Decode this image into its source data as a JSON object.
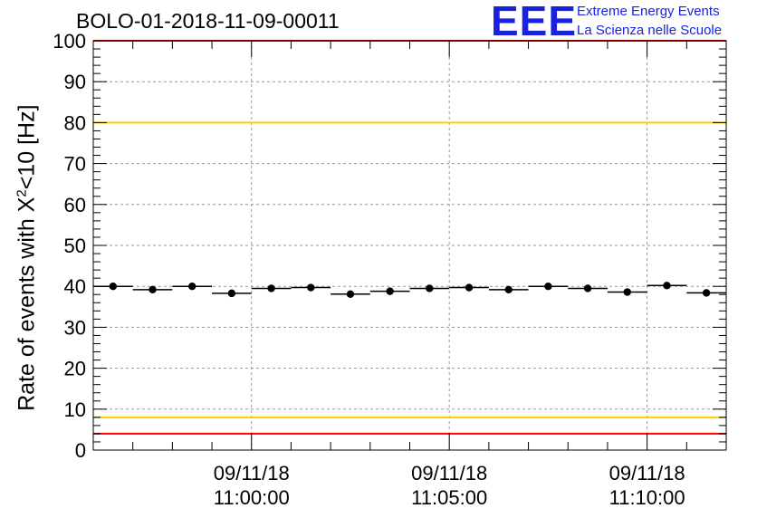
{
  "header": {
    "run_title": "BOLO-01-2018-11-09-00011"
  },
  "logo": {
    "mark": "EEE",
    "line1": "Extreme Energy Events",
    "line2": "La Scienza nelle Scuole",
    "color": "#1a22e0"
  },
  "chart_data": {
    "type": "scatter",
    "title": "BOLO-01-2018-11-09-00011",
    "xlabel": "",
    "ylabel_prefix": "Rate of events with X",
    "ylabel_sup": "2",
    "ylabel_suffix": "<10 [Hz]",
    "ylim": [
      0,
      100
    ],
    "yticks": [
      0,
      10,
      20,
      30,
      40,
      50,
      60,
      70,
      80,
      90,
      100
    ],
    "xlim": [
      "10:56:00",
      "11:12:00"
    ],
    "grid": true,
    "xticks": [
      {
        "x": "11:00:00",
        "date": "09/11/18",
        "time": "11:00:00"
      },
      {
        "x": "11:05:00",
        "date": "09/11/18",
        "time": "11:05:00"
      },
      {
        "x": "11:10:00",
        "date": "09/11/18",
        "time": "11:10:00"
      }
    ],
    "points": [
      {
        "x": "10:56:30",
        "y": 40
      },
      {
        "x": "10:57:30",
        "y": 39.2
      },
      {
        "x": "10:58:30",
        "y": 40
      },
      {
        "x": "10:59:30",
        "y": 38.3
      },
      {
        "x": "11:00:30",
        "y": 39.5
      },
      {
        "x": "11:01:30",
        "y": 39.7
      },
      {
        "x": "11:02:30",
        "y": 38.1
      },
      {
        "x": "11:03:30",
        "y": 38.8
      },
      {
        "x": "11:04:30",
        "y": 39.5
      },
      {
        "x": "11:05:30",
        "y": 39.7
      },
      {
        "x": "11:06:30",
        "y": 39.2
      },
      {
        "x": "11:07:30",
        "y": 40
      },
      {
        "x": "11:08:30",
        "y": 39.5
      },
      {
        "x": "11:09:30",
        "y": 38.6
      },
      {
        "x": "11:10:30",
        "y": 40.2
      },
      {
        "x": "11:11:30",
        "y": 38.4
      }
    ],
    "bin_width_seconds": 60,
    "reference_lines": [
      {
        "y": 100,
        "color": "#ff0000"
      },
      {
        "y": 80,
        "color": "#ffcc00"
      },
      {
        "y": 8,
        "color": "#ffcc00"
      },
      {
        "y": 4,
        "color": "#ff0000"
      }
    ]
  }
}
